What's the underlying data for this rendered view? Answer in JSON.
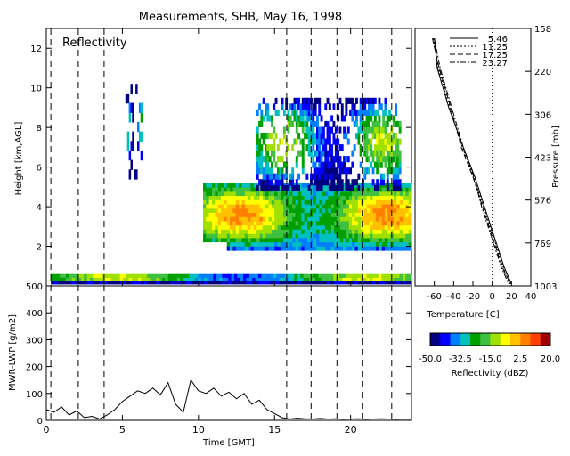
{
  "title": "Measurements, SHB, May 16, 1998",
  "colors": {
    "background": "#ffffff",
    "axis": "#000000",
    "colorscale": [
      "#000080",
      "#0000ff",
      "#0080ff",
      "#00c0c0",
      "#00a000",
      "#40c040",
      "#a0e000",
      "#ffff00",
      "#ffc000",
      "#ff8000",
      "#ff4000",
      "#a00000"
    ]
  },
  "chart_data": [
    {
      "id": "reflectivity",
      "type": "heatmap",
      "title": "",
      "panel_label": "Reflectivity",
      "xlabel": "",
      "ylabel": "Height [km,AGL]",
      "xlim": [
        0,
        24
      ],
      "ylim": [
        0,
        13
      ],
      "yticks": [
        2,
        4,
        6,
        8,
        10,
        12
      ],
      "xticks": [
        0,
        5,
        10,
        15,
        20
      ],
      "grid": false,
      "sounding_times_gmt": [
        0.3,
        2.1,
        3.8,
        15.8,
        17.4,
        19.1,
        20.8,
        22.7
      ],
      "echoes": [
        {
          "layer": "boundary_layer",
          "t": [
            0.3,
            24
          ],
          "z": [
            0.1,
            0.6
          ],
          "max_dbz": -5
        },
        {
          "layer": "mid_level",
          "t": [
            10.3,
            24
          ],
          "z": [
            1.8,
            5.2
          ],
          "max_dbz": 5
        },
        {
          "layer": "upper",
          "t": [
            13.8,
            23.3
          ],
          "z": [
            4.8,
            9.5
          ],
          "max_dbz": -10
        },
        {
          "layer": "sparse",
          "t": [
            5.2,
            6.3
          ],
          "z": [
            5.4,
            10.2
          ],
          "max_dbz": -25
        }
      ]
    },
    {
      "id": "lwp",
      "type": "line",
      "title": "",
      "xlabel": "Time [GMT]",
      "ylabel": "MWR-LWP [g/m2]",
      "xlim": [
        0,
        24
      ],
      "ylim": [
        0,
        500
      ],
      "xticks": [
        0,
        5,
        10,
        15,
        20
      ],
      "xtick_labels": [
        "0",
        "5",
        "10",
        "15",
        "20"
      ],
      "yticks": [
        0,
        100,
        200,
        300,
        400,
        500
      ],
      "ytick_labels": [
        "0",
        "100",
        "200",
        "300",
        "400",
        "500"
      ],
      "x": [
        0,
        0.5,
        1,
        1.5,
        2,
        2.5,
        3,
        3.5,
        4,
        4.5,
        5,
        5.5,
        6,
        6.5,
        7,
        7.5,
        8,
        8.5,
        9,
        9.5,
        10,
        10.5,
        11,
        11.5,
        12,
        12.5,
        13,
        13.5,
        14,
        14.5,
        15,
        15.5,
        16,
        16.5,
        17,
        17.5,
        18,
        18.5,
        19,
        19.5,
        20,
        20.5,
        21,
        21.5,
        22,
        22.5,
        23,
        23.5,
        24
      ],
      "values": [
        40,
        30,
        50,
        20,
        35,
        10,
        15,
        5,
        20,
        40,
        70,
        90,
        110,
        100,
        120,
        95,
        140,
        60,
        30,
        150,
        110,
        100,
        120,
        90,
        105,
        80,
        100,
        60,
        75,
        40,
        25,
        10,
        5,
        8,
        6,
        5,
        7,
        5,
        6,
        4,
        5,
        6,
        4,
        5,
        6,
        5,
        4,
        5,
        4
      ]
    },
    {
      "id": "sounding",
      "type": "line",
      "title": "",
      "xlabel": "Temperature [C]",
      "ylabel": "Pressure [mb]",
      "xlim": [
        -80,
        40
      ],
      "xticks": [
        -60,
        -40,
        -20,
        0,
        20,
        40
      ],
      "xtick_labels": [
        "-60",
        "-40",
        "-20",
        "0",
        "20",
        "40"
      ],
      "pressure_ticks": [
        "158",
        "220",
        "306",
        "423",
        "576",
        "769",
        "1003"
      ],
      "series": [
        {
          "name": "5.46",
          "x": [
            -60,
            -57,
            -45,
            -30,
            -18,
            -8,
            2,
            12,
            20
          ],
          "y": [
            12.5,
            11,
            9,
            7,
            5.5,
            4,
            2.5,
            1,
            0.1
          ]
        },
        {
          "name": "11.25",
          "x": [
            -61,
            -56,
            -44,
            -31,
            -19,
            -9,
            1,
            11,
            18
          ],
          "y": [
            12.5,
            11,
            9,
            7,
            5.5,
            4,
            2.5,
            1,
            0.1
          ]
        },
        {
          "name": "17.25",
          "x": [
            -62,
            -55,
            -43,
            -32,
            -20,
            -10,
            0,
            10,
            19
          ],
          "y": [
            12.5,
            11,
            9,
            7,
            5.5,
            4,
            2.5,
            1,
            0.1
          ]
        },
        {
          "name": "23.27",
          "x": [
            -60,
            -54,
            -42,
            -30,
            -19,
            -11,
            -1,
            9,
            17
          ],
          "y": [
            12.5,
            11,
            9,
            7,
            5.5,
            4,
            2.5,
            1,
            0.1
          ]
        }
      ]
    }
  ],
  "colorbar": {
    "label": "Reflectivity (dBZ)",
    "tick_labels": [
      "-50.0",
      "-32.5",
      "-15.0",
      "2.5",
      "20.0"
    ],
    "range": [
      -50,
      20
    ]
  }
}
